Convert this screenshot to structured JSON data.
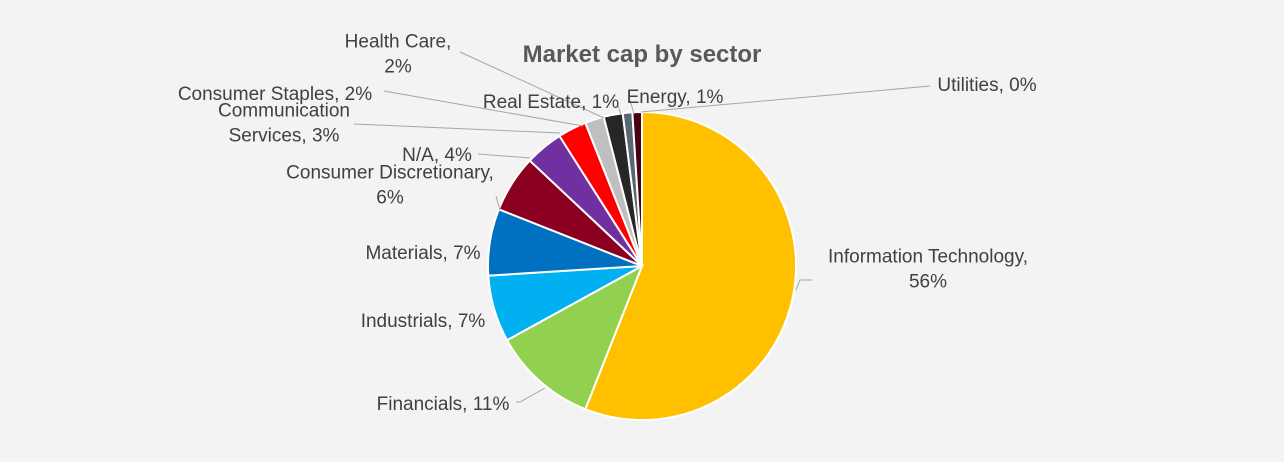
{
  "chart_data": {
    "type": "pie",
    "title": "Market cap by sector",
    "xlabel": "",
    "ylabel": "",
    "legend": "none",
    "slices": [
      {
        "name": "Information Technology",
        "value": 56,
        "color": "#ffc000",
        "label_lines": [
          "Information Technology,",
          "56%"
        ]
      },
      {
        "name": "Financials",
        "value": 11,
        "color": "#92d050",
        "label_lines": [
          "Financials, 11%"
        ]
      },
      {
        "name": "Industrials",
        "value": 7,
        "color": "#00b0f0",
        "label_lines": [
          "Industrials, 7%"
        ]
      },
      {
        "name": "Materials",
        "value": 7,
        "color": "#0070c0",
        "label_lines": [
          "Materials, 7%"
        ]
      },
      {
        "name": "Consumer Discretionary",
        "value": 6,
        "color": "#8b0021",
        "label_lines": [
          "Consumer Discretionary,",
          "6%"
        ]
      },
      {
        "name": "N/A",
        "value": 4,
        "color": "#7030a0",
        "label_lines": [
          "N/A, 4%"
        ]
      },
      {
        "name": "Communication Services",
        "value": 3,
        "color": "#ff0000",
        "label_lines": [
          "Communication",
          "Services, 3%"
        ]
      },
      {
        "name": "Consumer Staples",
        "value": 2,
        "color": "#bfbfbf",
        "label_lines": [
          "Consumer Staples, 2%"
        ]
      },
      {
        "name": "Health Care",
        "value": 2,
        "color": "#262626",
        "label_lines": [
          "Health Care,",
          "2%"
        ]
      },
      {
        "name": "Real Estate",
        "value": 1,
        "color": "#596773",
        "label_lines": [
          "Real Estate, 1%"
        ]
      },
      {
        "name": "Energy",
        "value": 1,
        "color": "#4a0010",
        "label_lines": [
          "Energy, 1%"
        ]
      },
      {
        "name": "Utilities",
        "value": 0,
        "color": "#f2f2f2",
        "label_lines": [
          "Utilities, 0%"
        ]
      }
    ]
  }
}
